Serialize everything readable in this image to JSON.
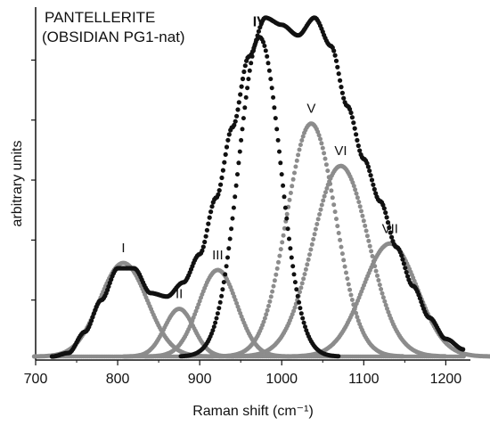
{
  "chart_data": {
    "type": "scatter",
    "title_lines": [
      "PANTELLERITE",
      "(OBSIDIAN PG1-nat)"
    ],
    "xlabel": "Raman shift (cm⁻¹)",
    "ylabel": "arbitrary units",
    "xlim": [
      700,
      1230
    ],
    "ylim": [
      0,
      1.0
    ],
    "x_ticks": [
      700,
      800,
      900,
      1000,
      1100,
      1200
    ],
    "x_tick_labels": [
      "700",
      "800",
      "900",
      "1000",
      "1100",
      "1200"
    ],
    "y_tick_labels_shown": false,
    "grid": false,
    "baseline": 0.01,
    "envelope": {
      "x": [
        720,
        740,
        760,
        780,
        800,
        820,
        840,
        860,
        880,
        900,
        920,
        940,
        960,
        980,
        1000,
        1020,
        1040,
        1060,
        1080,
        1100,
        1120,
        1140,
        1160,
        1180,
        1200,
        1222
      ],
      "y": [
        0.01,
        0.02,
        0.08,
        0.17,
        0.26,
        0.26,
        0.19,
        0.18,
        0.22,
        0.3,
        0.46,
        0.66,
        0.86,
        0.97,
        0.95,
        0.92,
        0.97,
        0.89,
        0.72,
        0.57,
        0.45,
        0.32,
        0.21,
        0.12,
        0.06,
        0.03
      ]
    },
    "components": [
      {
        "label": "I",
        "center": 807,
        "height": 0.265,
        "fwhm": 68,
        "color": "#8c8c8c",
        "label_bold": false
      },
      {
        "label": "II",
        "center": 875,
        "height": 0.135,
        "fwhm": 42,
        "color": "#8c8c8c",
        "label_bold": false
      },
      {
        "label": "III",
        "center": 922,
        "height": 0.245,
        "fwhm": 55,
        "color": "#8c8c8c",
        "label_bold": false
      },
      {
        "label": "IV",
        "center": 973,
        "height": 0.905,
        "fwhm": 60,
        "color": "#111111",
        "label_bold": true
      },
      {
        "label": "V",
        "center": 1036,
        "height": 0.66,
        "fwhm": 70,
        "color": "#8c8c8c",
        "label_bold": false
      },
      {
        "label": "VI",
        "center": 1072,
        "height": 0.54,
        "fwhm": 80,
        "color": "#8c8c8c",
        "label_bold": false
      },
      {
        "label": "VII",
        "center": 1132,
        "height": 0.32,
        "fwhm": 78,
        "color": "#8c8c8c",
        "label_bold": false
      }
    ],
    "envelope_color": "#111111",
    "point_spacing": 2
  }
}
